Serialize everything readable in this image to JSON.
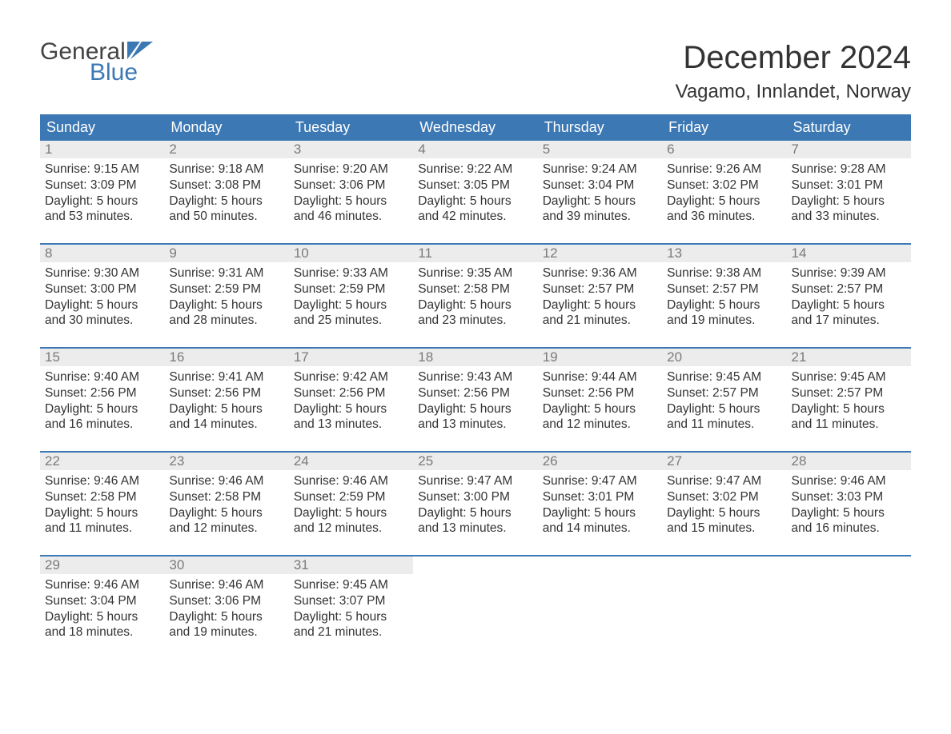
{
  "logo": {
    "word1": "General",
    "word2": "Blue"
  },
  "title": "December 2024",
  "location": "Vagamo, Innlandet, Norway",
  "colors": {
    "header_bg": "#3c78b4",
    "daynum_bg": "#ececec",
    "daynum_text": "#7a7a7a",
    "body_text": "#333333",
    "row_border": "#3c78b4",
    "page_bg": "#ffffff",
    "logo_gray": "#444444",
    "logo_blue": "#3c78b4"
  },
  "typography": {
    "title_fontsize": 40,
    "location_fontsize": 24,
    "dow_fontsize": 18,
    "daynum_fontsize": 17,
    "body_fontsize": 15.5,
    "logo_fontsize": 30
  },
  "days_of_week": [
    "Sunday",
    "Monday",
    "Tuesday",
    "Wednesday",
    "Thursday",
    "Friday",
    "Saturday"
  ],
  "weeks": [
    [
      {
        "n": "1",
        "sunrise": "9:15 AM",
        "sunset": "3:09 PM",
        "daylight": "5 hours and 53 minutes."
      },
      {
        "n": "2",
        "sunrise": "9:18 AM",
        "sunset": "3:08 PM",
        "daylight": "5 hours and 50 minutes."
      },
      {
        "n": "3",
        "sunrise": "9:20 AM",
        "sunset": "3:06 PM",
        "daylight": "5 hours and 46 minutes."
      },
      {
        "n": "4",
        "sunrise": "9:22 AM",
        "sunset": "3:05 PM",
        "daylight": "5 hours and 42 minutes."
      },
      {
        "n": "5",
        "sunrise": "9:24 AM",
        "sunset": "3:04 PM",
        "daylight": "5 hours and 39 minutes."
      },
      {
        "n": "6",
        "sunrise": "9:26 AM",
        "sunset": "3:02 PM",
        "daylight": "5 hours and 36 minutes."
      },
      {
        "n": "7",
        "sunrise": "9:28 AM",
        "sunset": "3:01 PM",
        "daylight": "5 hours and 33 minutes."
      }
    ],
    [
      {
        "n": "8",
        "sunrise": "9:30 AM",
        "sunset": "3:00 PM",
        "daylight": "5 hours and 30 minutes."
      },
      {
        "n": "9",
        "sunrise": "9:31 AM",
        "sunset": "2:59 PM",
        "daylight": "5 hours and 28 minutes."
      },
      {
        "n": "10",
        "sunrise": "9:33 AM",
        "sunset": "2:59 PM",
        "daylight": "5 hours and 25 minutes."
      },
      {
        "n": "11",
        "sunrise": "9:35 AM",
        "sunset": "2:58 PM",
        "daylight": "5 hours and 23 minutes."
      },
      {
        "n": "12",
        "sunrise": "9:36 AM",
        "sunset": "2:57 PM",
        "daylight": "5 hours and 21 minutes."
      },
      {
        "n": "13",
        "sunrise": "9:38 AM",
        "sunset": "2:57 PM",
        "daylight": "5 hours and 19 minutes."
      },
      {
        "n": "14",
        "sunrise": "9:39 AM",
        "sunset": "2:57 PM",
        "daylight": "5 hours and 17 minutes."
      }
    ],
    [
      {
        "n": "15",
        "sunrise": "9:40 AM",
        "sunset": "2:56 PM",
        "daylight": "5 hours and 16 minutes."
      },
      {
        "n": "16",
        "sunrise": "9:41 AM",
        "sunset": "2:56 PM",
        "daylight": "5 hours and 14 minutes."
      },
      {
        "n": "17",
        "sunrise": "9:42 AM",
        "sunset": "2:56 PM",
        "daylight": "5 hours and 13 minutes."
      },
      {
        "n": "18",
        "sunrise": "9:43 AM",
        "sunset": "2:56 PM",
        "daylight": "5 hours and 13 minutes."
      },
      {
        "n": "19",
        "sunrise": "9:44 AM",
        "sunset": "2:56 PM",
        "daylight": "5 hours and 12 minutes."
      },
      {
        "n": "20",
        "sunrise": "9:45 AM",
        "sunset": "2:57 PM",
        "daylight": "5 hours and 11 minutes."
      },
      {
        "n": "21",
        "sunrise": "9:45 AM",
        "sunset": "2:57 PM",
        "daylight": "5 hours and 11 minutes."
      }
    ],
    [
      {
        "n": "22",
        "sunrise": "9:46 AM",
        "sunset": "2:58 PM",
        "daylight": "5 hours and 11 minutes."
      },
      {
        "n": "23",
        "sunrise": "9:46 AM",
        "sunset": "2:58 PM",
        "daylight": "5 hours and 12 minutes."
      },
      {
        "n": "24",
        "sunrise": "9:46 AM",
        "sunset": "2:59 PM",
        "daylight": "5 hours and 12 minutes."
      },
      {
        "n": "25",
        "sunrise": "9:47 AM",
        "sunset": "3:00 PM",
        "daylight": "5 hours and 13 minutes."
      },
      {
        "n": "26",
        "sunrise": "9:47 AM",
        "sunset": "3:01 PM",
        "daylight": "5 hours and 14 minutes."
      },
      {
        "n": "27",
        "sunrise": "9:47 AM",
        "sunset": "3:02 PM",
        "daylight": "5 hours and 15 minutes."
      },
      {
        "n": "28",
        "sunrise": "9:46 AM",
        "sunset": "3:03 PM",
        "daylight": "5 hours and 16 minutes."
      }
    ],
    [
      {
        "n": "29",
        "sunrise": "9:46 AM",
        "sunset": "3:04 PM",
        "daylight": "5 hours and 18 minutes."
      },
      {
        "n": "30",
        "sunrise": "9:46 AM",
        "sunset": "3:06 PM",
        "daylight": "5 hours and 19 minutes."
      },
      {
        "n": "31",
        "sunrise": "9:45 AM",
        "sunset": "3:07 PM",
        "daylight": "5 hours and 21 minutes."
      },
      null,
      null,
      null,
      null
    ]
  ],
  "labels": {
    "sunrise": "Sunrise:",
    "sunset": "Sunset:",
    "daylight": "Daylight:"
  }
}
